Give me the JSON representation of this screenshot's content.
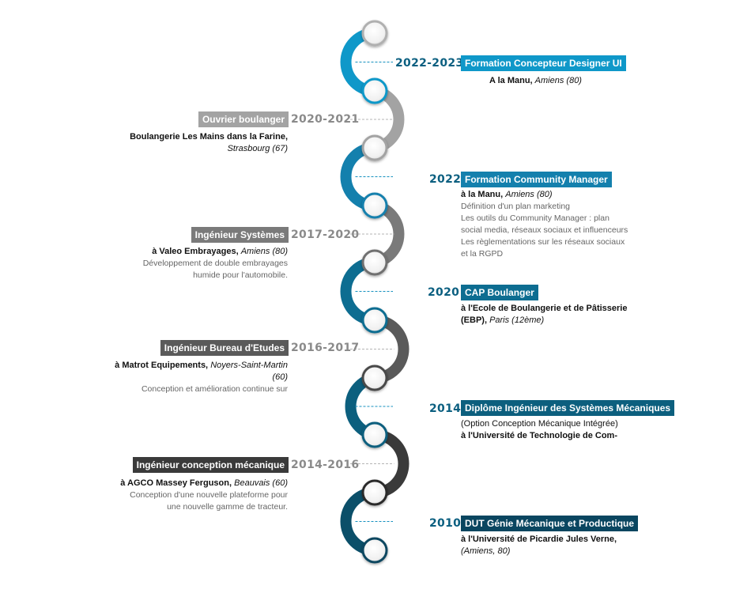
{
  "colors": {
    "c1": "#0f98c9",
    "c2": "#a3a3a3",
    "c3": "#1480ad",
    "c4": "#7a7a7a",
    "c5": "#0d6d91",
    "c6": "#5a5a5a",
    "c7": "#0c5f7e",
    "c8": "#3a3a3a",
    "c9": "#0b4f69",
    "c10": "#1f1f1f",
    "c11": "#0a4660"
  },
  "entries": [
    {
      "side": "right",
      "year": "2022-2023",
      "title": "Formation Concepteur Designer UI",
      "place": "A la Manu,",
      "city": "Amiens (80)",
      "desc": []
    },
    {
      "side": "left",
      "year": "2020-2021",
      "title": "Ouvrier boulanger",
      "place": "Boulangerie Les Mains dans la Farine,",
      "city": "Strasbourg (67)",
      "desc": []
    },
    {
      "side": "right",
      "year": "2022",
      "title": "Formation Community Manager",
      "place": "à la Manu,",
      "city": "Amiens (80)",
      "desc": [
        "Définition d'un plan marketing",
        "Les outils du Community Manager : plan",
        "social media, réseaux sociaux et influenceurs",
        "Les règlementations sur les réseaux sociaux",
        "et la RGPD"
      ]
    },
    {
      "side": "left",
      "year": "2017-2020",
      "title": "Ingénieur Systèmes",
      "place": "à Valeo Embrayages,",
      "city": "Amiens (80)",
      "desc": [
        "Développement de double embrayages",
        "humide pour l'automobile."
      ]
    },
    {
      "side": "right",
      "year": "2020",
      "title": "CAP Boulanger",
      "place": "à l'Ecole de Boulangerie et de Pâtisserie",
      "place2": "(EBP),",
      "city": "Paris (12ème)",
      "desc": []
    },
    {
      "side": "left",
      "year": "2016-2017",
      "title": "Ingénieur Bureau d'Etudes",
      "place": "à Matrot Equipements,",
      "city": "Noyers-Saint-Martin",
      "city2": "(60)",
      "desc": [
        "Conception et amélioration continue sur"
      ]
    },
    {
      "side": "right",
      "year": "2014",
      "title": "Diplôme Ingénieur des Systèmes Mécaniques",
      "sub": "(Option Conception Mécanique Intégrée)",
      "place": "à l'Université de Technologie de Com-",
      "desc": []
    },
    {
      "side": "left",
      "year": "2014-2016",
      "title": "Ingénieur conception mécanique",
      "place": "à AGCO Massey Ferguson,",
      "city": "Beauvais (60)",
      "desc": [
        "Conception d'une nouvelle plateforme pour",
        "une nouvelle gamme de tracteur."
      ]
    },
    {
      "side": "right",
      "year": "2010",
      "title": "DUT Génie Mécanique et Productique",
      "place": "à l'Université de Picardie Jules Verne,",
      "city": "(Amiens, 80)",
      "desc": []
    }
  ]
}
